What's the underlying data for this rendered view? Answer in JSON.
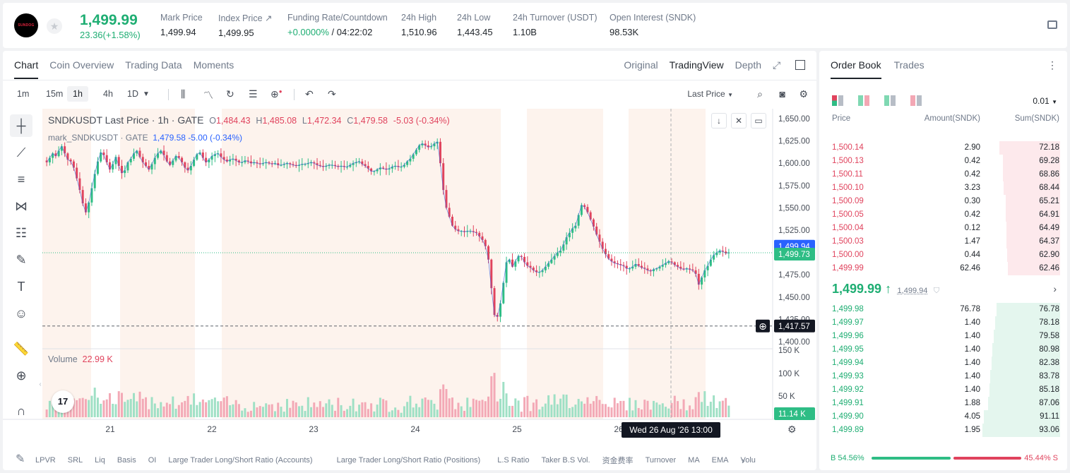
{
  "header": {
    "logo_text": "SUNDOG",
    "last_price": "1,499.99",
    "change": "23.36(+1.58%)",
    "stats": [
      {
        "label": "Mark Price",
        "value": "1,499.94"
      },
      {
        "label": "Index Price ↗",
        "value": "1,499.95"
      },
      {
        "label": "Funding Rate/Countdown",
        "value_green": "+0.0000%",
        "value": " / 04:22:02"
      },
      {
        "label": "24h High",
        "value": "1,510.96"
      },
      {
        "label": "24h Low",
        "value": "1,443.45"
      },
      {
        "label": "24h Turnover (USDT)",
        "value": "1.10B"
      },
      {
        "label": "Open Interest (SNDK)",
        "value": "98.53K"
      }
    ]
  },
  "chart_panel": {
    "tabs": [
      "Chart",
      "Coin Overview",
      "Trading Data",
      "Moments"
    ],
    "view_modes": [
      "Original",
      "TradingView",
      "Depth"
    ],
    "timeframes": [
      "1m",
      "15m",
      "1h",
      "4h",
      "1D"
    ],
    "price_source": "Last Price",
    "legend": {
      "symbol": "SNDKUSDT Last Price · 1h · GATE",
      "o_label": "O",
      "o": "1,484.43",
      "h_label": "H",
      "h": "1,485.08",
      "l_label": "L",
      "l": "1,472.34",
      "c_label": "C",
      "c": "1,479.58",
      "chg": "-5.03 (-0.34%)"
    },
    "legend2": {
      "name": "mark_SNDKUSDT · GATE",
      "value": "1,479.58 -5.00 (-0.34%)"
    },
    "volume_legend": {
      "label": "Volume",
      "value": "22.99 K"
    },
    "tv_logo": "17",
    "indicators": [
      "LPVR",
      "SRL",
      "Liq",
      "Basis",
      "OI",
      "Large Trader Long/Short Ratio (Accounts)",
      "Large Trader Long/Short Ratio (Positions)",
      "L.S Ratio",
      "Taker B.S Vol.",
      "资金费率",
      "Turnover",
      "MA",
      "EMA",
      "Volu"
    ]
  },
  "chart_data": {
    "type": "candlestick",
    "price_axis": {
      "min": 1400,
      "max": 1650,
      "ticks": [
        "1,650.00",
        "1,625.00",
        "1,600.00",
        "1,575.00",
        "1,550.00",
        "1,525.00",
        "1,500.00",
        "1,475.00",
        "1,450.00",
        "1,425.00",
        "1,400.00"
      ]
    },
    "volume_axis": {
      "ticks": [
        "150 K",
        "100 K",
        "50 K"
      ]
    },
    "x_ticks": [
      "21",
      "22",
      "23",
      "24",
      "25",
      "26"
    ],
    "price_labels": {
      "mark_price": "1,499.94",
      "last_price": "1,499.73",
      "crosshair_price": "1,417.57",
      "volume_current": "11.14 K"
    },
    "crosshair_time": "Wed 26 Aug '26   13:00",
    "close_series": [
      1601,
      1606,
      1611,
      1608,
      1614,
      1619,
      1611,
      1604,
      1602,
      1595,
      1583,
      1570,
      1555,
      1545,
      1556,
      1572,
      1588,
      1602,
      1612,
      1609,
      1601,
      1593,
      1599,
      1607,
      1597,
      1589,
      1592,
      1601,
      1605,
      1611,
      1614,
      1607,
      1601,
      1597,
      1593,
      1599,
      1606,
      1611,
      1614,
      1609,
      1602,
      1598,
      1603,
      1608,
      1606,
      1601,
      1595,
      1592,
      1597,
      1604,
      1610,
      1612,
      1606,
      1601,
      1604,
      1608,
      1610,
      1611,
      1607,
      1604,
      1602,
      1604,
      1605,
      1603,
      1601,
      1601,
      1603,
      1602,
      1600,
      1601,
      1600,
      1599,
      1600,
      1601,
      1600,
      1599,
      1600,
      1598,
      1598,
      1599,
      1600,
      1599,
      1598,
      1597,
      1598,
      1599,
      1599,
      1600,
      1601,
      1600,
      1598,
      1597,
      1596,
      1597,
      1598,
      1598,
      1597,
      1596,
      1597,
      1596,
      1596,
      1598,
      1600,
      1601,
      1602,
      1599,
      1597,
      1594,
      1591,
      1591,
      1593,
      1595,
      1594,
      1593,
      1594,
      1596,
      1597,
      1596,
      1596,
      1598,
      1602,
      1605,
      1610,
      1615,
      1620,
      1622,
      1620,
      1618,
      1619,
      1622,
      1624,
      1600,
      1570,
      1550,
      1540,
      1530,
      1526,
      1524,
      1524,
      1523,
      1524,
      1524,
      1523,
      1522,
      1518,
      1514,
      1507,
      1492,
      1460,
      1430,
      1428,
      1443,
      1466,
      1489,
      1492,
      1484,
      1490,
      1496,
      1495,
      1489,
      1485,
      1483,
      1480,
      1478,
      1478,
      1480,
      1484,
      1488,
      1492,
      1496,
      1500,
      1502,
      1509,
      1517,
      1522,
      1527,
      1530,
      1542,
      1553,
      1551,
      1545,
      1537,
      1529,
      1520,
      1512,
      1504,
      1498,
      1493,
      1490,
      1488,
      1487,
      1486,
      1485,
      1482,
      1482,
      1484,
      1487,
      1485,
      1483,
      1482,
      1480,
      1479,
      1481,
      1482,
      1484,
      1486,
      1488,
      1490,
      1489,
      1486,
      1484,
      1482,
      1481,
      1482,
      1481,
      1480,
      1476,
      1464,
      1472,
      1480,
      1485,
      1492,
      1497,
      1500,
      1502,
      1501,
      1499,
      1500
    ]
  },
  "order_book": {
    "tabs": [
      "Order Book",
      "Trades"
    ],
    "precision": "0.01",
    "columns": [
      "Price",
      "Amount(SNDK)",
      "Sum(SNDK)"
    ],
    "asks": [
      {
        "price": "1,500.14",
        "amount": "2.90",
        "sum": "72.18",
        "depth": 0.78
      },
      {
        "price": "1,500.13",
        "amount": "0.42",
        "sum": "69.28",
        "depth": 0.74
      },
      {
        "price": "1,500.11",
        "amount": "0.42",
        "sum": "68.86",
        "depth": 0.74
      },
      {
        "price": "1,500.10",
        "amount": "3.23",
        "sum": "68.44",
        "depth": 0.73
      },
      {
        "price": "1,500.09",
        "amount": "0.30",
        "sum": "65.21",
        "depth": 0.7
      },
      {
        "price": "1,500.05",
        "amount": "0.42",
        "sum": "64.91",
        "depth": 0.7
      },
      {
        "price": "1,500.04",
        "amount": "0.12",
        "sum": "64.49",
        "depth": 0.69
      },
      {
        "price": "1,500.03",
        "amount": "1.47",
        "sum": "64.37",
        "depth": 0.69
      },
      {
        "price": "1,500.00",
        "amount": "0.44",
        "sum": "62.90",
        "depth": 0.68
      },
      {
        "price": "1,499.99",
        "amount": "62.46",
        "sum": "62.46",
        "depth": 0.67
      }
    ],
    "mid_price": "1,499.99 ↑",
    "mid_mark": "1,499.94",
    "bids": [
      {
        "price": "1,499.98",
        "amount": "76.78",
        "sum": "76.78",
        "depth": 0.82
      },
      {
        "price": "1,499.97",
        "amount": "1.40",
        "sum": "78.18",
        "depth": 0.84
      },
      {
        "price": "1,499.96",
        "amount": "1.40",
        "sum": "79.58",
        "depth": 0.85
      },
      {
        "price": "1,499.95",
        "amount": "1.40",
        "sum": "80.98",
        "depth": 0.87
      },
      {
        "price": "1,499.94",
        "amount": "1.40",
        "sum": "82.38",
        "depth": 0.88
      },
      {
        "price": "1,499.93",
        "amount": "1.40",
        "sum": "83.78",
        "depth": 0.9
      },
      {
        "price": "1,499.92",
        "amount": "1.40",
        "sum": "85.18",
        "depth": 0.91
      },
      {
        "price": "1,499.91",
        "amount": "1.88",
        "sum": "87.06",
        "depth": 0.93
      },
      {
        "price": "1,499.90",
        "amount": "4.05",
        "sum": "91.11",
        "depth": 0.98
      },
      {
        "price": "1,499.89",
        "amount": "1.95",
        "sum": "93.06",
        "depth": 1.0
      }
    ],
    "buy_ratio": "B 54.56%",
    "sell_ratio": "45.44% S"
  }
}
